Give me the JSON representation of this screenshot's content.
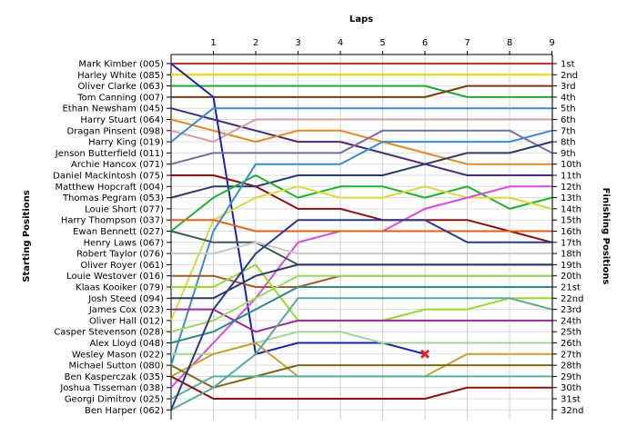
{
  "chart_data": {
    "type": "line",
    "title": "Laps",
    "xlabel": "Laps",
    "ylabel_left": "Starting Positions",
    "ylabel_right": "Finishing Positions",
    "x": [
      0,
      1,
      2,
      3,
      4,
      5,
      6,
      7,
      8,
      9
    ],
    "x_tick_labels": [
      "1",
      "2",
      "3",
      "4",
      "5",
      "6",
      "7",
      "8",
      "9"
    ],
    "ylim": [
      1,
      32
    ],
    "y_inverted": true,
    "grid": true,
    "drivers": [
      "Mark Kimber (005)",
      "Harley White (085)",
      "Oliver Clarke (063)",
      "Tom Canning (007)",
      "Ethan Newsham (045)",
      "Harry Stuart (064)",
      "Dragan Pinsent (098)",
      "Harry King (019)",
      "Jenson Butterfield (011)",
      "Archie Hancox (071)",
      "Daniel Mackintosh (075)",
      "Matthew Hopcraft (004)",
      "Thomas Pegram (053)",
      "Louie Short (077)",
      "Harry Thompson (037)",
      "Ewan Bennett (027)",
      "Henry Laws (067)",
      "Robert Taylor (076)",
      "Oliver Royer (061)",
      "Louie Westover (016)",
      "Klaas Kooiker (079)",
      "Josh Steed (094)",
      "James Cox (023)",
      "Oliver Hall (012)",
      "Casper Stevenson (028)",
      "Alex Lloyd (048)",
      "Wesley Mason (022)",
      "Michael Sutton (080)",
      "Ben Kasperczak (035)",
      "Joshua Tisseman (038)",
      "Georgi Dimitrov (025)",
      "Ben Harper (062)"
    ],
    "finishing_labels": [
      "1st",
      "2nd",
      "3rd",
      "4th",
      "5th",
      "6th",
      "7th",
      "8th",
      "9th",
      "10th",
      "11th",
      "12th",
      "13th",
      "14th",
      "15th",
      "16th",
      "17th",
      "18th",
      "19th",
      "20th",
      "21st",
      "22nd",
      "23rd",
      "24th",
      "25th",
      "26th",
      "27th",
      "28th",
      "29th",
      "30th",
      "31st",
      "32nd"
    ],
    "series": [
      {
        "color": "#e0262b",
        "values": [
          1,
          1,
          1,
          1,
          1,
          1,
          1,
          1,
          1,
          1
        ]
      },
      {
        "color": "#e8d600",
        "values": [
          2,
          2,
          2,
          2,
          2,
          2,
          2,
          2,
          2,
          2
        ]
      },
      {
        "color": "#1fa83a",
        "values": [
          3,
          3,
          3,
          3,
          3,
          3,
          3,
          4,
          4,
          4
        ]
      },
      {
        "color": "#7a3a10",
        "values": [
          4,
          4,
          4,
          4,
          4,
          4,
          4,
          3,
          3,
          3
        ]
      },
      {
        "color": "#4a2a7a",
        "values": [
          5,
          6,
          7,
          8,
          8,
          9,
          10,
          11,
          11,
          11
        ]
      },
      {
        "color": "#e08a2a",
        "values": [
          6,
          7,
          8,
          7,
          7,
          8,
          9,
          10,
          10,
          10
        ]
      },
      {
        "color": "#d89aa0",
        "values": [
          7,
          8,
          6,
          6,
          6,
          6,
          6,
          6,
          6,
          6
        ]
      },
      {
        "color": "#1a22b0",
        "values": [
          1,
          4,
          27,
          26,
          26,
          26,
          27,
          27,
          27,
          27
        ]
      },
      {
        "color": "#3a8ad8",
        "values": [
          8,
          5,
          5,
          5,
          5,
          5,
          5,
          5,
          5,
          5
        ]
      },
      {
        "color": "#7a6aa0",
        "values": [
          10,
          9,
          9,
          9,
          9,
          7,
          7,
          7,
          7,
          9
        ]
      },
      {
        "color": "#8a1010",
        "values": [
          11,
          11,
          12,
          14,
          14,
          15,
          15,
          15,
          16,
          17
        ]
      },
      {
        "color": "#2a3a6a",
        "values": [
          13,
          12,
          12,
          11,
          11,
          11,
          10,
          9,
          9,
          8
        ]
      },
      {
        "color": "#22b030",
        "values": [
          16,
          13,
          11,
          13,
          12,
          12,
          13,
          12,
          14,
          13
        ]
      },
      {
        "color": "#d8d840",
        "values": [
          24,
          15,
          13,
          12,
          13,
          13,
          12,
          13,
          13,
          14
        ]
      },
      {
        "color": "#3a8ad8",
        "values": [
          28,
          16,
          10,
          10,
          10,
          8,
          8,
          8,
          8,
          7
        ]
      },
      {
        "color": "#d84ad8",
        "values": [
          30,
          26,
          22,
          17,
          16,
          16,
          14,
          13,
          12,
          12
        ]
      },
      {
        "color": "#3a5a5a",
        "values": [
          16,
          17,
          17,
          19,
          19,
          19,
          19,
          19,
          19,
          19
        ]
      },
      {
        "color": "#c8c8c8",
        "values": [
          18,
          18,
          17,
          18,
          18,
          18,
          18,
          18,
          18,
          18
        ]
      },
      {
        "color": "#e06020",
        "values": [
          15,
          15,
          16,
          16,
          16,
          16,
          16,
          16,
          16,
          16
        ]
      },
      {
        "color": "#a05a2a",
        "values": [
          20,
          20,
          21,
          21,
          20,
          20,
          20,
          20,
          20,
          20
        ]
      },
      {
        "color": "#9ad830",
        "values": [
          21,
          21,
          19,
          24,
          24,
          24,
          23,
          23,
          22,
          22
        ]
      },
      {
        "color": "#2a3a6a",
        "values": [
          22,
          22,
          20,
          19,
          19,
          19,
          19,
          19,
          19,
          19
        ]
      },
      {
        "color": "#9a2a9a",
        "values": [
          23,
          23,
          25,
          24,
          24,
          24,
          24,
          24,
          24,
          24
        ]
      },
      {
        "color": "#9ad860",
        "values": [
          25,
          24,
          22,
          20,
          20,
          20,
          20,
          20,
          20,
          20
        ]
      },
      {
        "color": "#2a8a8a",
        "values": [
          26,
          25,
          23,
          21,
          21,
          21,
          21,
          21,
          21,
          21
        ]
      },
      {
        "color": "#a0d898",
        "values": [
          27,
          27,
          26,
          25,
          25,
          26,
          26,
          26,
          26,
          26
        ]
      },
      {
        "color": "#c8a030",
        "values": [
          29,
          27,
          26,
          29,
          29,
          29,
          29,
          27,
          27,
          27
        ]
      },
      {
        "color": "#7a6a10",
        "values": [
          28,
          30,
          29,
          28,
          28,
          28,
          28,
          28,
          28,
          28
        ]
      },
      {
        "color": "#5ab0a0",
        "values": [
          31,
          29,
          29,
          29,
          29,
          29,
          29,
          29,
          29,
          29
        ]
      },
      {
        "color": "#8a1010",
        "values": [
          29,
          31,
          31,
          31,
          31,
          31,
          31,
          30,
          30,
          30
        ]
      },
      {
        "color": "#5aa8a0",
        "values": [
          32,
          30,
          27,
          22,
          22,
          22,
          22,
          22,
          22,
          23
        ]
      },
      {
        "color": "#2a3a8a",
        "values": [
          32,
          23,
          18,
          15,
          15,
          15,
          15,
          17,
          17,
          17
        ]
      }
    ],
    "retirement_marker": {
      "series_index": 7,
      "x": 6,
      "y": 27,
      "color": "#e0262b"
    }
  }
}
